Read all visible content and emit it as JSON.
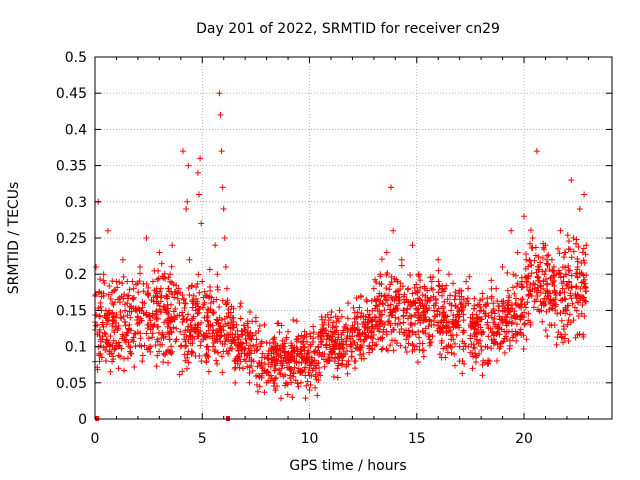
{
  "chart_data": {
    "type": "scatter",
    "title": "Day 201 of 2022, SRMTID for receiver cn29",
    "xlabel": "GPS time / hours",
    "ylabel": "SRMTID / TECUs",
    "xlim": [
      0,
      24.1
    ],
    "ylim": [
      0,
      0.5
    ],
    "xticks": [
      0,
      5,
      10,
      15,
      20
    ],
    "xtick_labels": [
      "0",
      "5",
      "10",
      "15",
      "20"
    ],
    "yticks": [
      0,
      0.05,
      0.1,
      0.15,
      0.2,
      0.25,
      0.3,
      0.35,
      0.4,
      0.45,
      0.5
    ],
    "ytick_labels": [
      "0",
      "0.05",
      "0.1",
      "0.15",
      "0.2",
      "0.25",
      "0.3",
      "0.35",
      "0.4",
      "0.45",
      "0.5"
    ],
    "grid": true,
    "marker": "+",
    "color": "#ff0000",
    "series": [
      {
        "name": "SRMTID",
        "x": [
          0.0,
          0.05,
          0.1,
          0.15,
          0.2,
          0.25,
          0.3,
          0.35,
          0.4,
          0.5,
          0.6,
          0.7,
          0.8,
          0.9,
          1.0,
          1.1,
          1.2,
          1.3,
          1.4,
          1.5,
          1.6,
          1.7,
          1.8,
          1.9,
          2.0,
          2.1,
          2.2,
          2.3,
          2.4,
          2.5,
          2.6,
          2.7,
          2.8,
          2.9,
          3.0,
          3.1,
          3.2,
          3.3,
          3.4,
          3.5,
          3.6,
          3.7,
          3.8,
          3.9,
          4.0,
          4.1,
          4.2,
          4.25,
          4.3,
          4.35,
          4.4,
          4.45,
          4.5,
          4.6,
          4.7,
          4.8,
          4.85,
          4.9,
          4.95,
          5.0,
          5.05,
          5.1,
          5.2,
          5.3,
          5.4,
          5.5,
          5.6,
          5.7,
          5.8,
          5.85,
          5.9,
          5.95,
          6.0,
          6.05,
          6.1,
          6.15,
          6.2,
          6.3,
          6.4,
          6.5,
          6.6,
          6.7,
          6.8,
          6.9,
          7.0,
          7.1,
          7.2,
          7.3,
          7.4,
          7.5,
          7.6,
          7.7,
          7.8,
          7.9,
          8.0,
          8.1,
          8.2,
          8.3,
          8.4,
          8.5,
          8.6,
          8.7,
          8.8,
          8.9,
          9.0,
          9.1,
          9.2,
          9.3,
          9.4,
          9.5,
          9.6,
          9.7,
          9.8,
          9.9,
          10.0,
          10.1,
          10.2,
          10.3,
          10.4,
          10.5,
          10.6,
          10.7,
          10.8,
          10.9,
          11.0,
          11.1,
          11.2,
          11.3,
          11.4,
          11.5,
          11.6,
          11.7,
          11.8,
          11.9,
          12.0,
          12.1,
          12.2,
          12.3,
          12.4,
          12.5,
          12.6,
          12.7,
          12.8,
          12.9,
          13.0,
          13.1,
          13.2,
          13.3,
          13.4,
          13.5,
          13.6,
          13.7,
          13.8,
          13.9,
          14.0,
          14.1,
          14.2,
          14.3,
          14.4,
          14.5,
          14.6,
          14.7,
          14.8,
          14.9,
          15.0,
          15.1,
          15.2,
          15.3,
          15.4,
          15.5,
          15.6,
          15.7,
          15.8,
          15.9,
          16.0,
          16.1,
          16.2,
          16.3,
          16.4,
          16.5,
          16.6,
          16.7,
          16.8,
          16.9,
          17.0,
          17.1,
          17.2,
          17.3,
          17.4,
          17.5,
          17.6,
          17.7,
          17.8,
          17.9,
          18.0,
          18.1,
          18.2,
          18.3,
          18.4,
          18.5,
          18.6,
          18.7,
          18.8,
          18.9,
          19.0,
          19.1,
          19.2,
          19.3,
          19.4,
          19.5,
          19.6,
          19.7,
          19.8,
          19.9,
          20.0,
          20.1,
          20.2,
          20.3,
          20.4,
          20.5,
          20.6,
          20.7,
          20.8,
          20.9,
          21.0,
          21.1,
          21.2,
          21.3,
          21.4,
          21.5,
          21.6,
          21.7,
          21.8,
          21.9,
          22.0,
          22.1,
          22.2,
          22.3,
          22.4,
          22.5,
          22.6,
          22.7,
          22.8,
          22.9
        ],
        "y": [
          0.17,
          0.21,
          0.13,
          0.3,
          0.12,
          0.09,
          0.15,
          0.11,
          0.2,
          0.14,
          0.26,
          0.1,
          0.16,
          0.12,
          0.19,
          0.07,
          0.14,
          0.22,
          0.11,
          0.17,
          0.13,
          0.09,
          0.18,
          0.15,
          0.12,
          0.21,
          0.08,
          0.16,
          0.25,
          0.13,
          0.1,
          0.19,
          0.14,
          0.11,
          0.23,
          0.17,
          0.09,
          0.15,
          0.12,
          0.2,
          0.24,
          0.14,
          0.11,
          0.18,
          0.1,
          0.37,
          0.16,
          0.29,
          0.3,
          0.35,
          0.22,
          0.13,
          0.09,
          0.17,
          0.15,
          0.34,
          0.31,
          0.36,
          0.27,
          0.19,
          0.11,
          0.14,
          0.08,
          0.13,
          0.16,
          0.1,
          0.24,
          0.2,
          0.45,
          0.42,
          0.37,
          0.32,
          0.29,
          0.25,
          0.21,
          0.18,
          0.09,
          0.14,
          0.11,
          0.08,
          0.13,
          0.1,
          0.16,
          0.07,
          0.12,
          0.09,
          0.05,
          0.11,
          0.08,
          0.14,
          0.06,
          0.1,
          0.07,
          0.13,
          0.05,
          0.09,
          0.06,
          0.11,
          0.04,
          0.08,
          0.12,
          0.07,
          0.1,
          0.05,
          0.09,
          0.06,
          0.03,
          0.08,
          0.11,
          0.07,
          0.05,
          0.1,
          0.06,
          0.09,
          0.04,
          0.08,
          0.12,
          0.07,
          0.1,
          0.06,
          0.13,
          0.09,
          0.11,
          0.08,
          0.14,
          0.1,
          0.12,
          0.07,
          0.15,
          0.11,
          0.09,
          0.13,
          0.16,
          0.1,
          0.12,
          0.08,
          0.14,
          0.11,
          0.17,
          0.09,
          0.13,
          0.15,
          0.1,
          0.12,
          0.18,
          0.14,
          0.11,
          0.2,
          0.16,
          0.13,
          0.23,
          0.17,
          0.32,
          0.26,
          0.14,
          0.19,
          0.12,
          0.22,
          0.15,
          0.11,
          0.18,
          0.13,
          0.24,
          0.16,
          0.1,
          0.2,
          0.14,
          0.12,
          0.17,
          0.15,
          0.11,
          0.19,
          0.13,
          0.16,
          0.22,
          0.12,
          0.18,
          0.14,
          0.1,
          0.2,
          0.15,
          0.11,
          0.17,
          0.13,
          0.08,
          0.16,
          0.12,
          0.19,
          0.1,
          0.14,
          0.07,
          0.13,
          0.11,
          0.09,
          0.15,
          0.12,
          0.1,
          0.16,
          0.08,
          0.14,
          0.11,
          0.18,
          0.13,
          0.1,
          0.21,
          0.15,
          0.12,
          0.17,
          0.26,
          0.2,
          0.16,
          0.23,
          0.14,
          0.19,
          0.28,
          0.22,
          0.17,
          0.13,
          0.25,
          0.18,
          0.37,
          0.21,
          0.15,
          0.19,
          0.24,
          0.17,
          0.13,
          0.22,
          0.16,
          0.2,
          0.12,
          0.26,
          0.18,
          0.23,
          0.15,
          0.19,
          0.33,
          0.25,
          0.17,
          0.21,
          0.29,
          0.2,
          0.31,
          0.24
        ]
      }
    ],
    "dense_bands": [
      {
        "t0": 0.0,
        "t1": 2.0,
        "lo": 0.06,
        "hi": 0.2
      },
      {
        "t0": 2.0,
        "t1": 4.0,
        "lo": 0.06,
        "hi": 0.22
      },
      {
        "t0": 4.0,
        "t1": 5.5,
        "lo": 0.06,
        "hi": 0.2
      },
      {
        "t0": 5.5,
        "t1": 6.5,
        "lo": 0.06,
        "hi": 0.17
      },
      {
        "t0": 6.5,
        "t1": 7.5,
        "lo": 0.05,
        "hi": 0.15
      },
      {
        "t0": 7.5,
        "t1": 9.0,
        "lo": 0.03,
        "hi": 0.13
      },
      {
        "t0": 9.0,
        "t1": 10.5,
        "lo": 0.03,
        "hi": 0.13
      },
      {
        "t0": 10.5,
        "t1": 12.0,
        "lo": 0.06,
        "hi": 0.15
      },
      {
        "t0": 12.0,
        "t1": 13.0,
        "lo": 0.07,
        "hi": 0.17
      },
      {
        "t0": 13.0,
        "t1": 14.5,
        "lo": 0.08,
        "hi": 0.21
      },
      {
        "t0": 14.5,
        "t1": 16.0,
        "lo": 0.08,
        "hi": 0.2
      },
      {
        "t0": 16.0,
        "t1": 17.5,
        "lo": 0.07,
        "hi": 0.2
      },
      {
        "t0": 17.5,
        "t1": 19.0,
        "lo": 0.06,
        "hi": 0.18
      },
      {
        "t0": 19.0,
        "t1": 20.0,
        "lo": 0.08,
        "hi": 0.2
      },
      {
        "t0": 20.0,
        "t1": 21.5,
        "lo": 0.11,
        "hi": 0.25
      },
      {
        "t0": 21.5,
        "t1": 22.9,
        "lo": 0.1,
        "hi": 0.25
      }
    ],
    "zero_markers_x": [
      0.1,
      6.2
    ]
  }
}
